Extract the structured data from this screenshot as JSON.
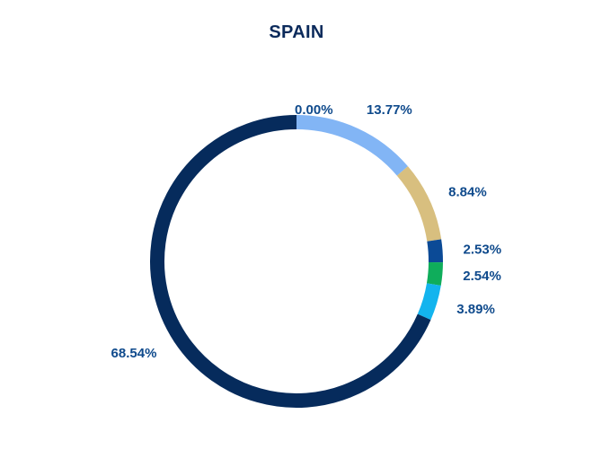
{
  "chart_data": {
    "type": "pie",
    "title": "SPAIN",
    "donut": true,
    "legend": "none",
    "slices": [
      {
        "value": 0.0,
        "label": "0.00%",
        "color": "#7fb3f0"
      },
      {
        "value": 13.77,
        "label": "13.77%",
        "color": "#82b5f5"
      },
      {
        "value": 8.84,
        "label": "8.84%",
        "color": "#d8bf7f"
      },
      {
        "value": 2.53,
        "label": "2.53%",
        "color": "#0b4a96"
      },
      {
        "value": 2.54,
        "label": "2.54%",
        "color": "#0fad5b"
      },
      {
        "value": 3.89,
        "label": "3.89%",
        "color": "#13b4ee"
      },
      {
        "value": 68.54,
        "label": "68.54%",
        "color": "#062b5c"
      }
    ]
  }
}
